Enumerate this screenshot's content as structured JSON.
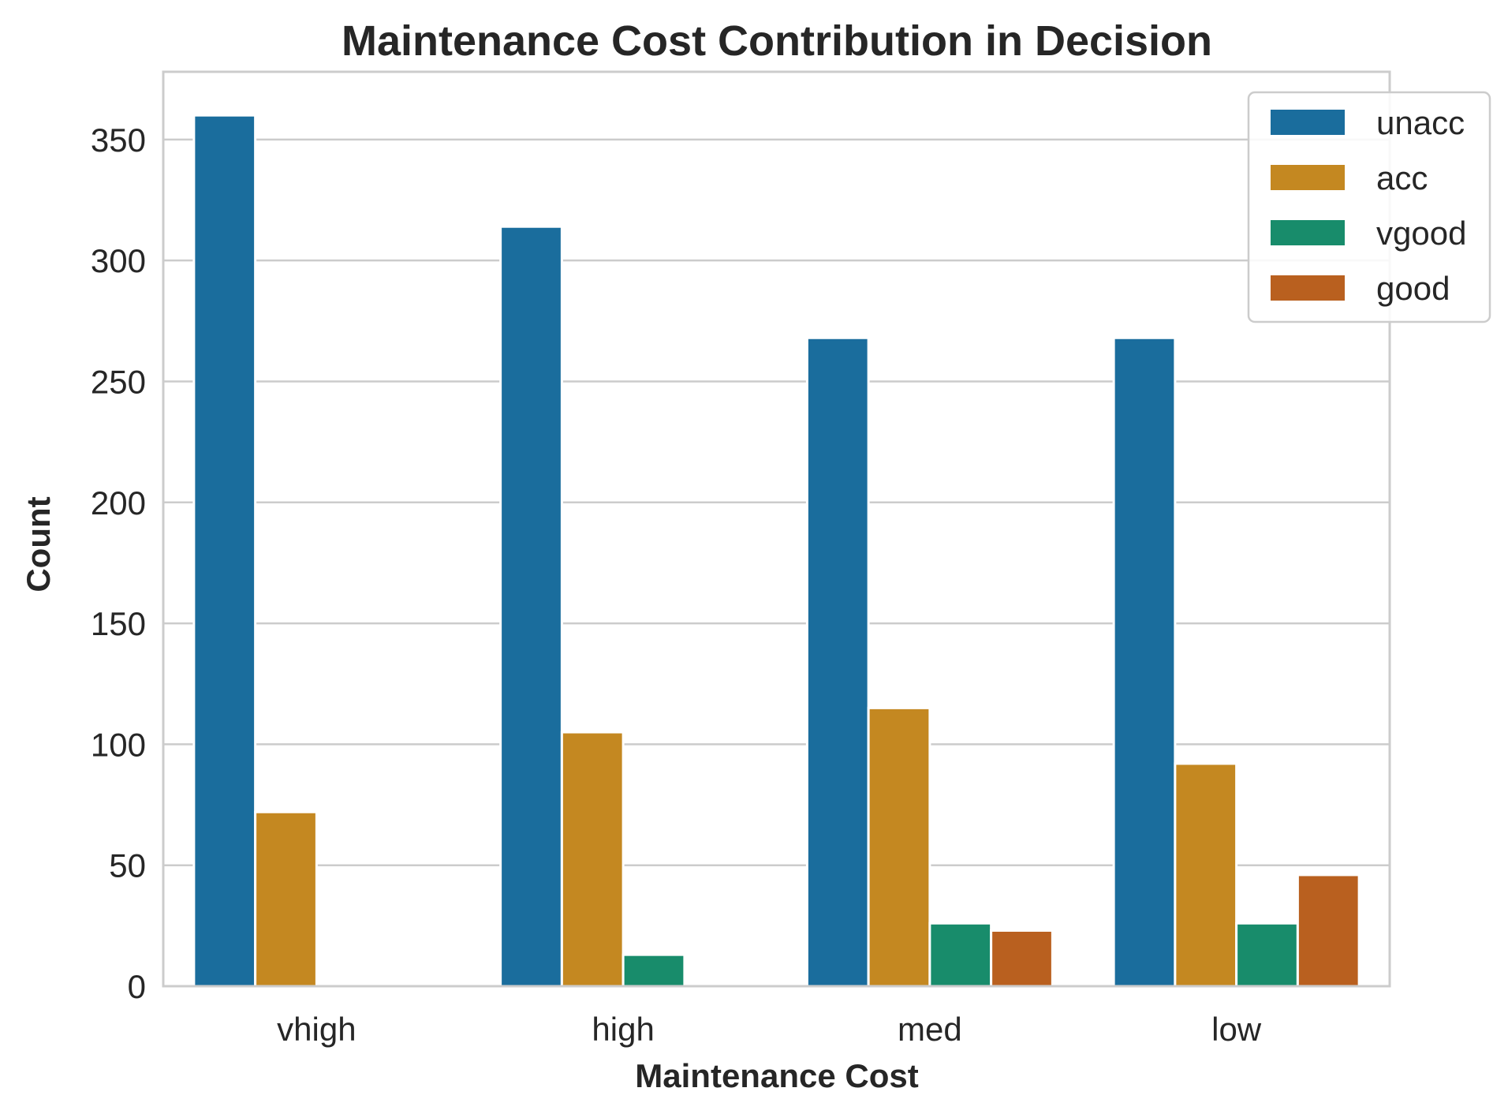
{
  "chart_data": {
    "type": "bar",
    "title": "Maintenance Cost Contribution in Decision",
    "xlabel": "Maintenance Cost",
    "ylabel": "Count",
    "categories": [
      "vhigh",
      "high",
      "med",
      "low"
    ],
    "ylim": [
      0,
      378
    ],
    "yticks": [
      0,
      50,
      100,
      150,
      200,
      250,
      300,
      350
    ],
    "grid": true,
    "legend_position": "top-right",
    "series": [
      {
        "name": "unacc",
        "color": "#1a6d9d",
        "values": [
          360,
          314,
          268,
          268
        ]
      },
      {
        "name": "acc",
        "color": "#c48821",
        "values": [
          72,
          105,
          115,
          92
        ]
      },
      {
        "name": "vgood",
        "color": "#188c6b",
        "values": [
          0,
          13,
          26,
          26
        ]
      },
      {
        "name": "good",
        "color": "#b9601f",
        "values": [
          0,
          0,
          23,
          46
        ]
      }
    ]
  }
}
